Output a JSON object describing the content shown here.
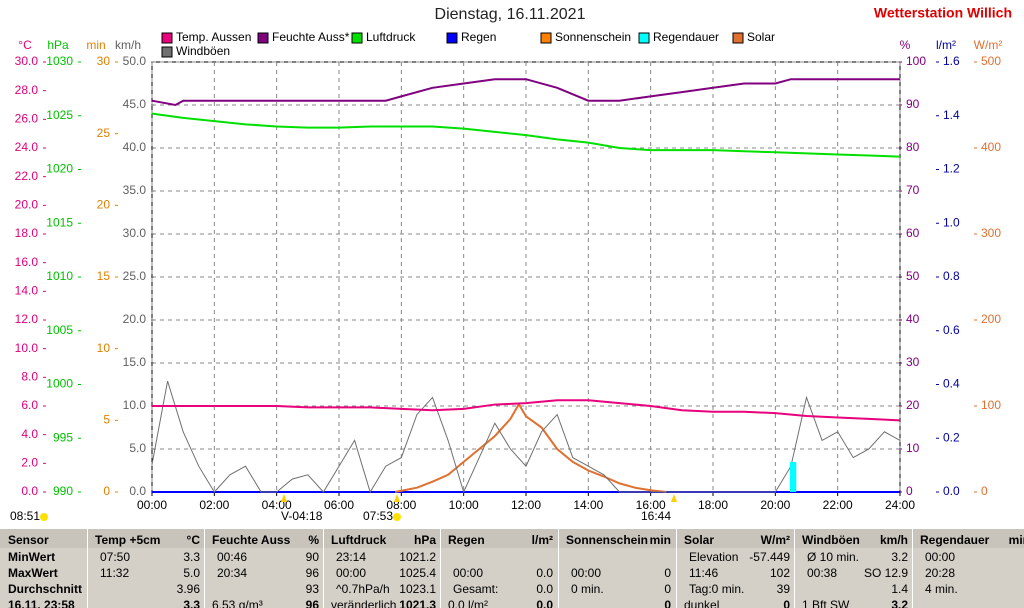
{
  "header": {
    "title": "Dienstag, 16.11.2021",
    "station": "Wetterstation Willich"
  },
  "chart_data": {
    "type": "line",
    "xlim": [
      0,
      24
    ],
    "xticks": [
      {
        "value": 0,
        "label": "00:00"
      },
      {
        "value": 2,
        "label": "02:00"
      },
      {
        "value": 4,
        "label": "04:00"
      },
      {
        "value": 6,
        "label": "06:00"
      },
      {
        "value": 8,
        "label": "08:00"
      },
      {
        "value": 10,
        "label": "10:00"
      },
      {
        "value": 12,
        "label": "12:00"
      },
      {
        "value": 14,
        "label": "14:00"
      },
      {
        "value": 16,
        "label": "16:00"
      },
      {
        "value": 18,
        "label": "18:00"
      },
      {
        "value": 20,
        "label": "20:00"
      },
      {
        "value": 22,
        "label": "22:00"
      },
      {
        "value": 24,
        "label": "24:00"
      }
    ],
    "grid": true,
    "axes": [
      {
        "unit": "°C",
        "color": "#e0007a",
        "lim": [
          0,
          30
        ],
        "ticks": [
          {
            "value": 0,
            "label": "0.0"
          },
          {
            "value": 2,
            "label": "2.0"
          },
          {
            "value": 4,
            "label": "4.0"
          },
          {
            "value": 6,
            "label": "6.0"
          },
          {
            "value": 8,
            "label": "8.0"
          },
          {
            "value": 10,
            "label": "10.0"
          },
          {
            "value": 12,
            "label": "12.0"
          },
          {
            "value": 14,
            "label": "14.0"
          },
          {
            "value": 16,
            "label": "16.0"
          },
          {
            "value": 18,
            "label": "18.0"
          },
          {
            "value": 20,
            "label": "20.0"
          },
          {
            "value": 22,
            "label": "22.0"
          },
          {
            "value": 24,
            "label": "24.0"
          },
          {
            "value": 26,
            "label": "26.0"
          },
          {
            "value": 28,
            "label": "28.0"
          },
          {
            "value": 30,
            "label": "30.0"
          }
        ]
      },
      {
        "unit": "hPa",
        "color": "#00c000",
        "lim": [
          990,
          1030
        ],
        "ticks": [
          990,
          995,
          1000,
          1005,
          1010,
          1015,
          1020,
          1025,
          1030
        ]
      },
      {
        "unit": "min",
        "color": "#e08000",
        "lim": [
          0,
          30
        ],
        "ticks": [
          0,
          5,
          10,
          15,
          20,
          25,
          30
        ]
      },
      {
        "unit": "km/h",
        "color": "#606060",
        "lim": [
          0,
          50
        ],
        "ticks": [
          {
            "value": 0,
            "label": "0.0"
          },
          {
            "value": 5,
            "label": "5.0"
          },
          {
            "value": 10,
            "label": "10.0"
          },
          {
            "value": 15,
            "label": "15.0"
          },
          {
            "value": 20,
            "label": "20.0"
          },
          {
            "value": 25,
            "label": "25.0"
          },
          {
            "value": 30,
            "label": "30.0"
          },
          {
            "value": 35,
            "label": "35.0"
          },
          {
            "value": 40,
            "label": "40.0"
          },
          {
            "value": 45,
            "label": "45.0"
          },
          {
            "value": 50,
            "label": "50.0"
          }
        ]
      },
      {
        "unit": "%",
        "color": "#800080",
        "lim": [
          0,
          100
        ],
        "ticks": [
          0,
          10,
          20,
          30,
          40,
          50,
          60,
          70,
          80,
          90,
          100
        ]
      },
      {
        "unit": "l/m²",
        "color": "#0000a0",
        "lim": [
          0,
          1.6
        ],
        "ticks": [
          {
            "value": 0,
            "label": "0.0"
          },
          {
            "value": 0.2,
            "label": "0.2"
          },
          {
            "value": 0.4,
            "label": "0.4"
          },
          {
            "value": 0.6,
            "label": "0.6"
          },
          {
            "value": 0.8,
            "label": "0.8"
          },
          {
            "value": 1,
            "label": "1.0"
          },
          {
            "value": 1.2,
            "label": "1.2"
          },
          {
            "value": 1.4,
            "label": "1.4"
          },
          {
            "value": 1.6,
            "label": "1.6"
          }
        ]
      },
      {
        "unit": "W/m²",
        "color": "#e07030",
        "lim": [
          0,
          500
        ],
        "ticks": [
          0,
          100,
          200,
          300,
          400,
          500
        ]
      }
    ],
    "series": [
      {
        "name": "Temp. Aussen",
        "color": "#e8007c",
        "axis": 0,
        "style": "line",
        "x": [
          0,
          1,
          2,
          3,
          4,
          5,
          6,
          7,
          8,
          9,
          10,
          11,
          12,
          13,
          14,
          15,
          16,
          17,
          18,
          19,
          20,
          21,
          22,
          23,
          24
        ],
        "values": [
          6.0,
          6.0,
          6.0,
          6.0,
          6.0,
          5.9,
          5.9,
          5.9,
          5.8,
          5.7,
          5.8,
          6.1,
          6.2,
          6.4,
          6.4,
          6.2,
          6.0,
          5.7,
          5.6,
          5.6,
          5.5,
          5.3,
          5.2,
          5.1,
          5.0
        ]
      },
      {
        "name": "Feuchte Auss*",
        "color": "#800080",
        "axis": 4,
        "style": "line",
        "x": [
          0,
          0.75,
          1,
          2,
          3,
          4,
          5,
          6,
          7,
          7.5,
          8,
          9,
          10,
          11,
          12,
          13,
          14,
          15,
          16,
          17,
          18,
          19,
          20,
          20.5,
          21,
          22,
          23,
          24
        ],
        "values": [
          91,
          90,
          91,
          91,
          91,
          91,
          91,
          91,
          91,
          91,
          92,
          94,
          95,
          96,
          96,
          94,
          91,
          91,
          92,
          93,
          94,
          95,
          95,
          96,
          96,
          96,
          96,
          96
        ]
      },
      {
        "name": "Luftdruck",
        "color": "#00e000",
        "axis": 1,
        "style": "line",
        "x": [
          0,
          1,
          2,
          3,
          4,
          5,
          6,
          7,
          8,
          9,
          10,
          11,
          12,
          13,
          14,
          15,
          16,
          17,
          18,
          19,
          20,
          21,
          22,
          23,
          24
        ],
        "values": [
          1025.2,
          1024.8,
          1024.5,
          1024.2,
          1024.0,
          1023.9,
          1023.9,
          1024.0,
          1024.0,
          1024.0,
          1023.8,
          1023.5,
          1023.2,
          1022.8,
          1022.5,
          1022.0,
          1021.8,
          1021.8,
          1021.8,
          1021.7,
          1021.6,
          1021.5,
          1021.4,
          1021.3,
          1021.2
        ]
      },
      {
        "name": "Sonnenschein",
        "color": "#ff8000",
        "axis": 2,
        "style": "line",
        "x": [
          0,
          24
        ],
        "values": [
          0,
          0
        ]
      },
      {
        "name": "Regen",
        "color": "#0000ff",
        "axis": 5,
        "style": "line",
        "x": [
          0,
          24
        ],
        "values": [
          0,
          0
        ]
      },
      {
        "name": "Regendauer",
        "color": "#00ffff",
        "axis": 2,
        "style": "area",
        "x": [
          20.47,
          20.67
        ],
        "values": [
          2.1,
          2.1
        ]
      },
      {
        "name": "Solar",
        "color": "#e07030",
        "axis": 6,
        "style": "line",
        "x": [
          7.8,
          8.5,
          9,
          9.5,
          10,
          10.5,
          11,
          11.5,
          11.77,
          12,
          12.5,
          13,
          13.5,
          14,
          14.5,
          15,
          15.5,
          16,
          16.5
        ],
        "values": [
          0,
          5,
          12,
          20,
          35,
          50,
          65,
          85,
          102,
          88,
          75,
          50,
          35,
          25,
          18,
          10,
          5,
          2,
          0
        ]
      },
      {
        "name": "Windböen",
        "color": "#707070",
        "axis": 3,
        "style": "line",
        "x": [
          0,
          0.5,
          1,
          1.5,
          2,
          2.5,
          3,
          3.5,
          4,
          4.5,
          5,
          5.5,
          6,
          6.5,
          7,
          7.5,
          8,
          8.5,
          9,
          9.5,
          10,
          10.5,
          11,
          11.5,
          12,
          12.5,
          13,
          13.5,
          14,
          14.5,
          15,
          15.5,
          16,
          16.5,
          17,
          17.5,
          18,
          18.5,
          19,
          19.5,
          20,
          20.5,
          21,
          21.5,
          22,
          22.5,
          23,
          23.5,
          24
        ],
        "values": [
          3.2,
          12.9,
          7,
          3,
          0,
          2,
          3,
          0,
          0,
          1.5,
          2,
          0,
          3,
          6,
          0,
          3,
          4,
          9,
          11,
          6,
          0,
          4,
          8,
          5,
          3,
          7,
          9,
          4,
          3,
          2,
          0,
          0,
          0,
          0,
          0,
          0,
          0,
          0,
          0,
          0,
          0,
          3,
          11,
          6,
          7,
          4,
          5,
          7,
          6
        ]
      }
    ]
  },
  "astro": [
    {
      "label": "08:51"
    },
    {
      "label": "V-04:18"
    },
    {
      "label": "07:53"
    },
    {
      "label": "16:44"
    }
  ],
  "table": {
    "sensor": "Sensor",
    "row_labels": [
      "MinWert",
      "MaxWert",
      "Durchschnitt",
      "16.11. 23:58"
    ],
    "groups": [
      {
        "header": "Temp +5cm",
        "unit": "°C",
        "rows": [
          [
            "07:50",
            "3.3"
          ],
          [
            "11:32",
            "5.0"
          ],
          [
            null,
            "3.96"
          ],
          [
            null,
            "3.3"
          ]
        ]
      },
      {
        "header": "Feuchte Auss",
        "unit": "%",
        "rows": [
          [
            "00:46",
            "90"
          ],
          [
            "20:34",
            "96"
          ],
          [
            null,
            "93"
          ],
          [
            "6.53 g/m³",
            "96"
          ]
        ]
      },
      {
        "header": "Luftdruck",
        "unit": "hPa",
        "rows": [
          [
            "23:14",
            "1021.2"
          ],
          [
            "00:00",
            "1025.4"
          ],
          [
            "^0.7hPa/h",
            "1023.1"
          ],
          [
            "veränderlich",
            "1021.3"
          ]
        ]
      },
      {
        "header": "Regen",
        "unit": "l/m²",
        "rows": [
          [
            null,
            null
          ],
          [
            "00:00",
            "0.0"
          ],
          [
            "Gesamt:",
            "0.0"
          ],
          [
            "0.0 l/m²",
            "0.0"
          ]
        ]
      },
      {
        "header": "Sonnenschein",
        "unit": "min",
        "rows": [
          [
            null,
            null
          ],
          [
            "00:00",
            "0"
          ],
          [
            "0 min.",
            "0"
          ],
          [
            null,
            "0"
          ]
        ]
      },
      {
        "header": "Solar",
        "unit": "W/m²",
        "rows": [
          [
            "Elevation",
            "-57.449"
          ],
          [
            "11:46",
            "102"
          ],
          [
            "Tag:0 min.",
            "39"
          ],
          [
            "dunkel",
            "0"
          ]
        ]
      },
      {
        "header": "Windböen",
        "unit": "km/h",
        "rows": [
          [
            "Ø 10 min.",
            "3.2"
          ],
          [
            "00:38",
            "SO 12.9"
          ],
          [
            null,
            "1.4"
          ],
          [
            "1 Bft SW",
            "3.2"
          ]
        ]
      },
      {
        "header": "Regendauer",
        "unit": "min",
        "rows": [
          [
            "00:00",
            null
          ],
          [
            "20:28",
            null
          ],
          [
            "4 min.",
            null
          ],
          [
            null,
            null
          ]
        ]
      }
    ]
  }
}
